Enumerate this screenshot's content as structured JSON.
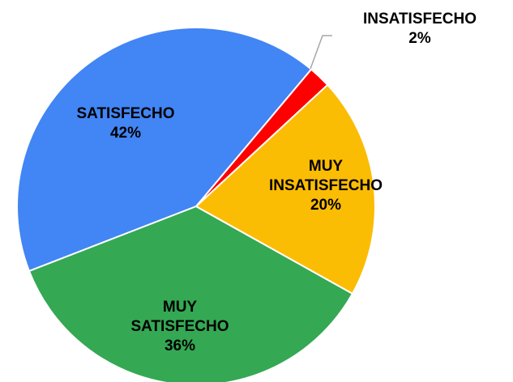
{
  "chart_data": {
    "type": "pie",
    "categories": [
      "INSATISFECHO",
      "MUY INSATISFECHO",
      "MUY SATISFECHO",
      "SATISFECHO"
    ],
    "values": [
      2,
      20,
      36,
      42
    ],
    "value_labels": [
      "2%",
      "20%",
      "36%",
      "42%"
    ],
    "colors": [
      "#ff0000",
      "#fbbc04",
      "#34a853",
      "#4285f4"
    ]
  }
}
